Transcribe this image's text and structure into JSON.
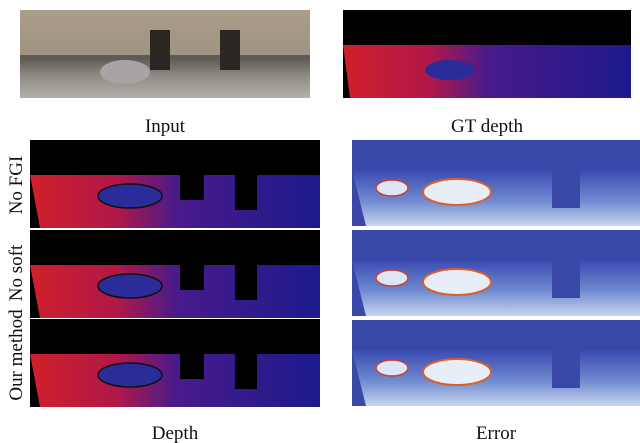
{
  "top_captions": [
    "Input",
    "GT depth"
  ],
  "row_labels": [
    "No FGI",
    "No soft",
    "Our method"
  ],
  "bottom_captions": [
    "Depth",
    "Error"
  ]
}
